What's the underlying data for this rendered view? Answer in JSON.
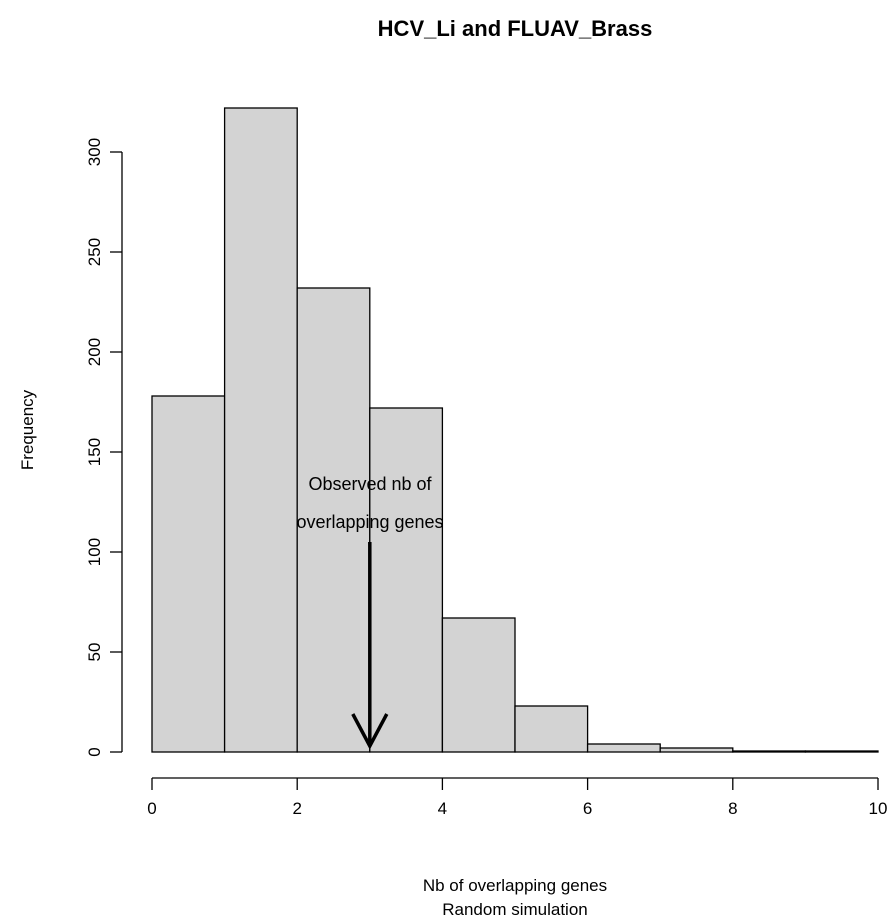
{
  "chart_data": {
    "type": "bar",
    "title": "HCV_Li  and  FLUAV_Brass",
    "xlabel": "Nb of overlapping genes",
    "xlabel2": "Random simulation",
    "ylabel": "Frequency",
    "bins": [
      {
        "from": 0,
        "to": 1,
        "value": 178
      },
      {
        "from": 1,
        "to": 2,
        "value": 322
      },
      {
        "from": 2,
        "to": 3,
        "value": 232
      },
      {
        "from": 3,
        "to": 4,
        "value": 172
      },
      {
        "from": 4,
        "to": 5,
        "value": 67
      },
      {
        "from": 5,
        "to": 6,
        "value": 23
      },
      {
        "from": 6,
        "to": 7,
        "value": 4
      },
      {
        "from": 7,
        "to": 8,
        "value": 2
      },
      {
        "from": 8,
        "to": 9,
        "value": 0.5
      },
      {
        "from": 9,
        "to": 10,
        "value": 0.5
      }
    ],
    "xlim": [
      0,
      10
    ],
    "ylim": [
      0,
      325
    ],
    "xticks": [
      0,
      2,
      4,
      6,
      8,
      10
    ],
    "yticks": [
      0,
      50,
      100,
      150,
      200,
      250,
      300
    ],
    "bar_color": "#d3d3d3",
    "grid": false,
    "annotation": {
      "lines": [
        "Observed nb of",
        "overlapping genes"
      ],
      "arrow_x": 3,
      "arrow_from_y": 105,
      "arrow_to_y": 3
    }
  }
}
